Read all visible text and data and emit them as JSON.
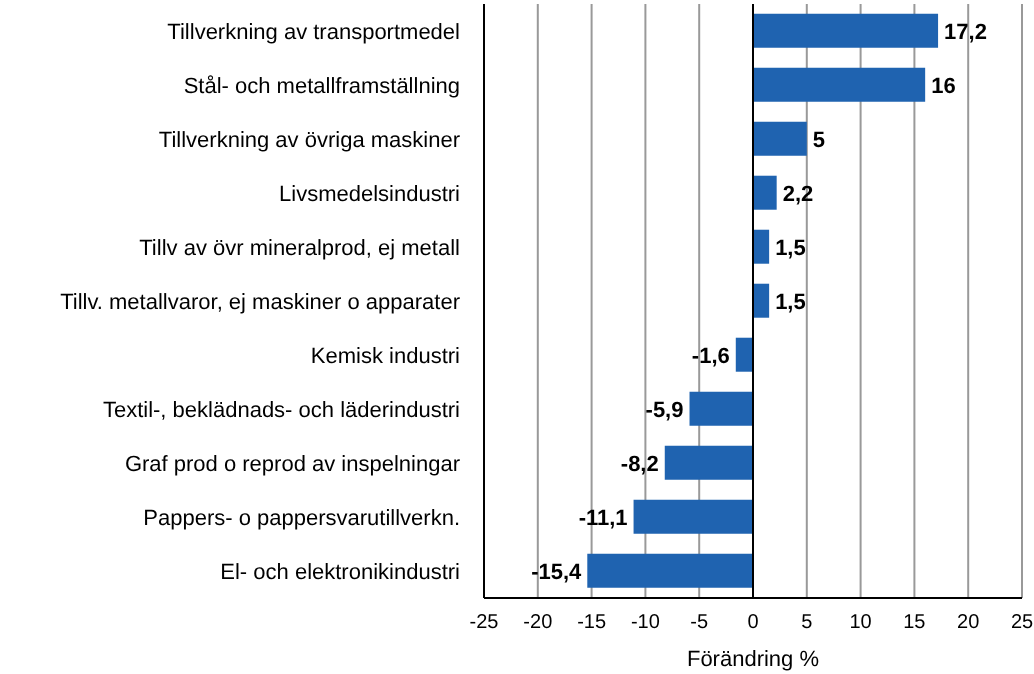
{
  "chart_data": {
    "type": "bar",
    "orientation": "horizontal",
    "xlabel": "Förändring %",
    "categories": [
      "Tillverkning av transportmedel",
      "Stål- och metallframställning",
      "Tillverkning av övriga maskiner",
      "Livsmedelsindustri",
      "Tillv av övr mineralprod, ej metall",
      "Tillv. metallvaror, ej maskiner o apparater",
      "Kemisk industri",
      "Textil-, beklädnads- och läderindustri",
      "Graf prod o reprod av inspelningar",
      "Pappers- o pappersvarutillverkn.",
      "El- och elektronikindustri"
    ],
    "values": [
      17.2,
      16,
      5,
      2.2,
      1.5,
      1.5,
      -1.6,
      -5.9,
      -8.2,
      -11.1,
      -15.4
    ],
    "value_labels": [
      "17,2",
      "16",
      "5",
      "2,2",
      "1,5",
      "1,5",
      "-1,6",
      "-5,9",
      "-8,2",
      "-11,1",
      "-15,4"
    ],
    "color": "#1f63b0",
    "xlim": [
      -25,
      25
    ],
    "xticks": [
      -25,
      -20,
      -15,
      -10,
      -5,
      0,
      5,
      10,
      15,
      20,
      25
    ],
    "grid": "x"
  }
}
